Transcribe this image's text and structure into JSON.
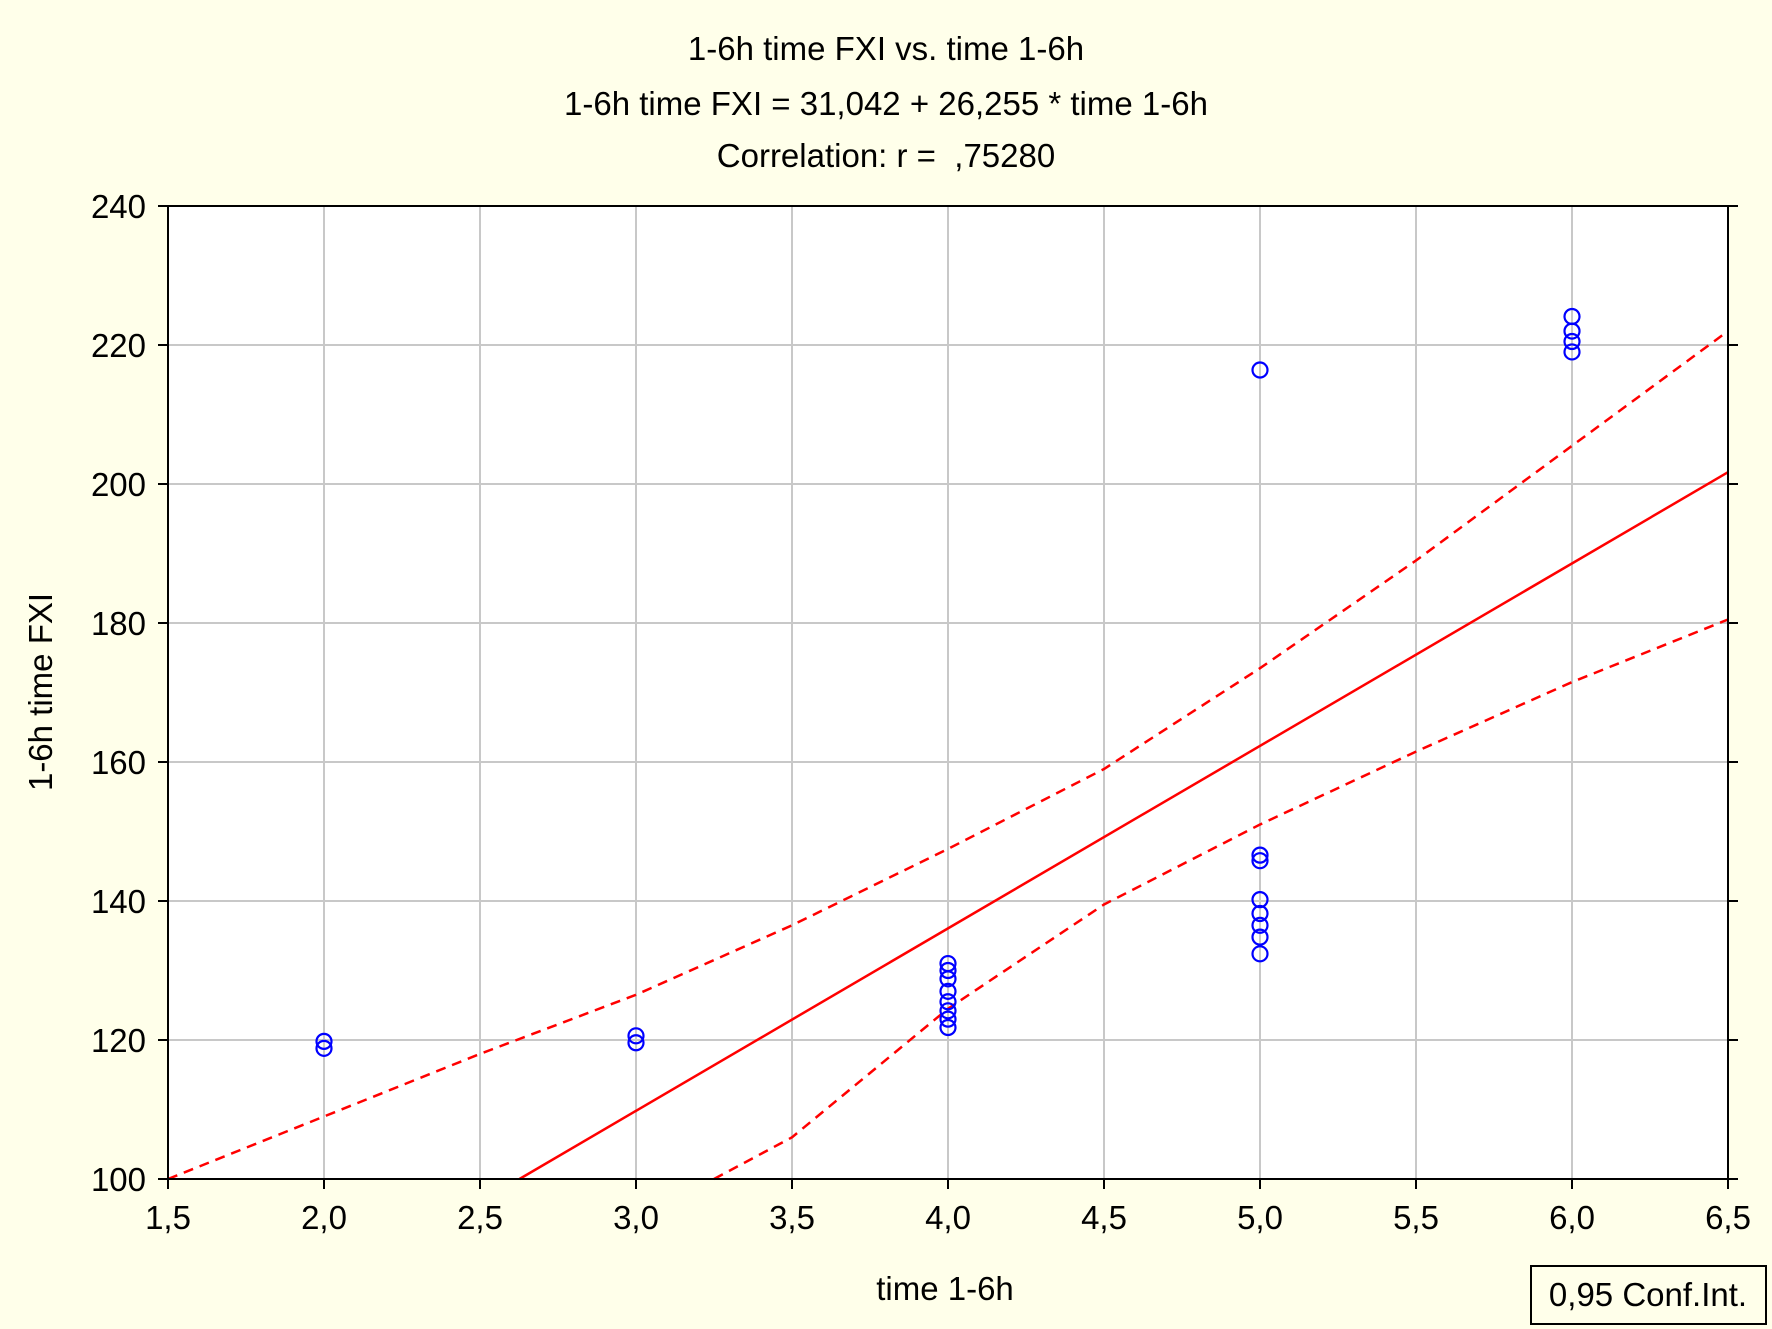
{
  "chart_data": {
    "type": "scatter",
    "title": "1-6h time FXI vs. time 1-6h",
    "subtitle": "1-6h time FXI = 31,042 + 26,255 * time 1-6h",
    "annotation": "Correlation: r =  ,75280",
    "xlabel": "time 1-6h",
    "ylabel": "1-6h time FXI",
    "xlim": [
      1.5,
      6.5
    ],
    "ylim": [
      100,
      240
    ],
    "xticks": [
      1.5,
      2.0,
      2.5,
      3.0,
      3.5,
      4.0,
      4.5,
      5.0,
      5.5,
      6.0,
      6.5
    ],
    "xtick_labels": [
      "1,5",
      "2,0",
      "2,5",
      "3,0",
      "3,5",
      "4,0",
      "4,5",
      "5,0",
      "5,5",
      "6,0",
      "6,5"
    ],
    "yticks": [
      100,
      120,
      140,
      160,
      180,
      200,
      220,
      240
    ],
    "ytick_labels": [
      "100",
      "120",
      "140",
      "160",
      "180",
      "200",
      "220",
      "240"
    ],
    "grid": true,
    "legend_text": "0,95 Conf.Int.",
    "legend_position": "bottom-right",
    "points": [
      {
        "x": 2,
        "y": 118.8
      },
      {
        "x": 2,
        "y": 119.8
      },
      {
        "x": 3,
        "y": 119.6
      },
      {
        "x": 3,
        "y": 120.6
      },
      {
        "x": 4,
        "y": 121.8
      },
      {
        "x": 4,
        "y": 123
      },
      {
        "x": 4,
        "y": 124.2
      },
      {
        "x": 4,
        "y": 125.5
      },
      {
        "x": 4,
        "y": 127
      },
      {
        "x": 4,
        "y": 128.8
      },
      {
        "x": 4,
        "y": 130
      },
      {
        "x": 4,
        "y": 131
      },
      {
        "x": 5,
        "y": 132.4
      },
      {
        "x": 5,
        "y": 134.8
      },
      {
        "x": 5,
        "y": 136.5
      },
      {
        "x": 5,
        "y": 138.2
      },
      {
        "x": 5,
        "y": 140.2
      },
      {
        "x": 5,
        "y": 145.8
      },
      {
        "x": 5,
        "y": 146.6
      },
      {
        "x": 5,
        "y": 216.4
      },
      {
        "x": 6,
        "y": 219
      },
      {
        "x": 6,
        "y": 220.5
      },
      {
        "x": 6,
        "y": 222
      },
      {
        "x": 6,
        "y": 224.1
      }
    ],
    "regression": {
      "intercept": 31.042,
      "slope": 26.255
    },
    "ci_upper": [
      {
        "x": 1.5,
        "y": 99.5
      },
      {
        "x": 2.0,
        "y": 109
      },
      {
        "x": 2.5,
        "y": 118
      },
      {
        "x": 3.0,
        "y": 126.5
      },
      {
        "x": 3.5,
        "y": 136.5
      },
      {
        "x": 4.0,
        "y": 147.5
      },
      {
        "x": 4.5,
        "y": 159
      },
      {
        "x": 5.0,
        "y": 173.5
      },
      {
        "x": 5.5,
        "y": 189
      },
      {
        "x": 6.0,
        "y": 205.5
      },
      {
        "x": 6.5,
        "y": 222
      }
    ],
    "ci_lower": [
      {
        "x": 3.25,
        "y": 100
      },
      {
        "x": 3.5,
        "y": 106
      },
      {
        "x": 4.0,
        "y": 124.5
      },
      {
        "x": 4.5,
        "y": 139.5
      },
      {
        "x": 5.0,
        "y": 151
      },
      {
        "x": 5.5,
        "y": 161.5
      },
      {
        "x": 6.0,
        "y": 171.5
      },
      {
        "x": 6.5,
        "y": 180.5
      }
    ],
    "colors": {
      "background": "#FFFFEA",
      "plot_area": "#FFFFFF",
      "grid": "#C8C8C8",
      "points": "#0000FF",
      "fit_line": "#FF0000",
      "ci_line": "#FF0000"
    }
  }
}
